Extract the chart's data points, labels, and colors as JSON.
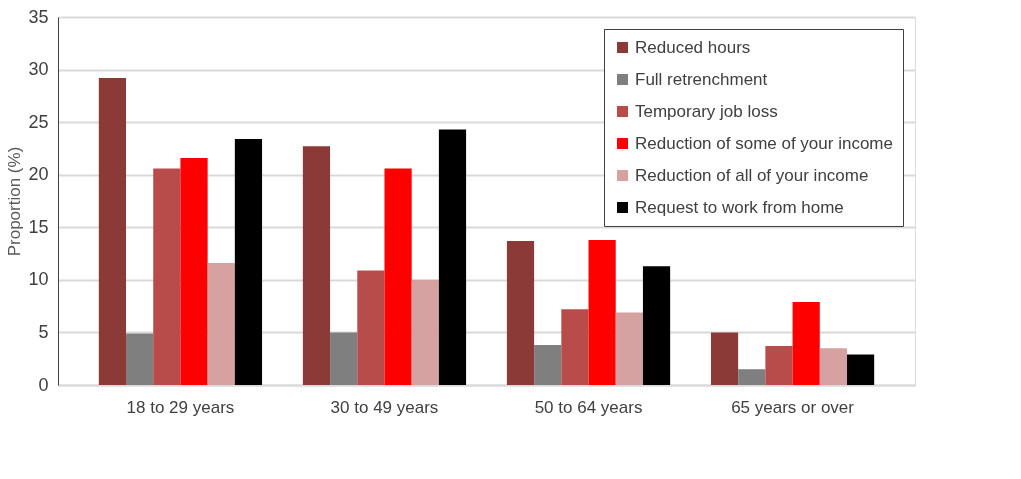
{
  "chart_data": {
    "type": "bar",
    "ylabel": "Proportion (%)",
    "categories": [
      "18 to 29 years",
      "30 to 49 years",
      "50 to 64 years",
      "65 years or over"
    ],
    "series": [
      {
        "name": "Reduced hours",
        "color": "#8b3a38",
        "values": [
          29.2,
          22.7,
          13.7,
          5.0
        ]
      },
      {
        "name": "Full retrenchment",
        "color": "#7f7f7f",
        "values": [
          4.9,
          5.0,
          3.8,
          1.5
        ]
      },
      {
        "name": "Temporary job loss",
        "color": "#b84c4a",
        "values": [
          20.6,
          10.9,
          7.2,
          3.7
        ]
      },
      {
        "name": "Reduction of some of your income",
        "color": "#ff0000",
        "values": [
          21.6,
          20.6,
          13.8,
          7.9
        ]
      },
      {
        "name": "Reduction of all of your income",
        "color": "#d6a1a1",
        "values": [
          11.6,
          10.0,
          6.9,
          3.5
        ]
      },
      {
        "name": "Request to work from home",
        "color": "#000000",
        "values": [
          23.4,
          24.3,
          11.3,
          2.9
        ]
      }
    ],
    "ylim": [
      0,
      35
    ],
    "yticks": [
      0,
      5,
      10,
      15,
      20,
      25,
      30,
      35
    ],
    "grid": "y",
    "legend": "top right"
  }
}
